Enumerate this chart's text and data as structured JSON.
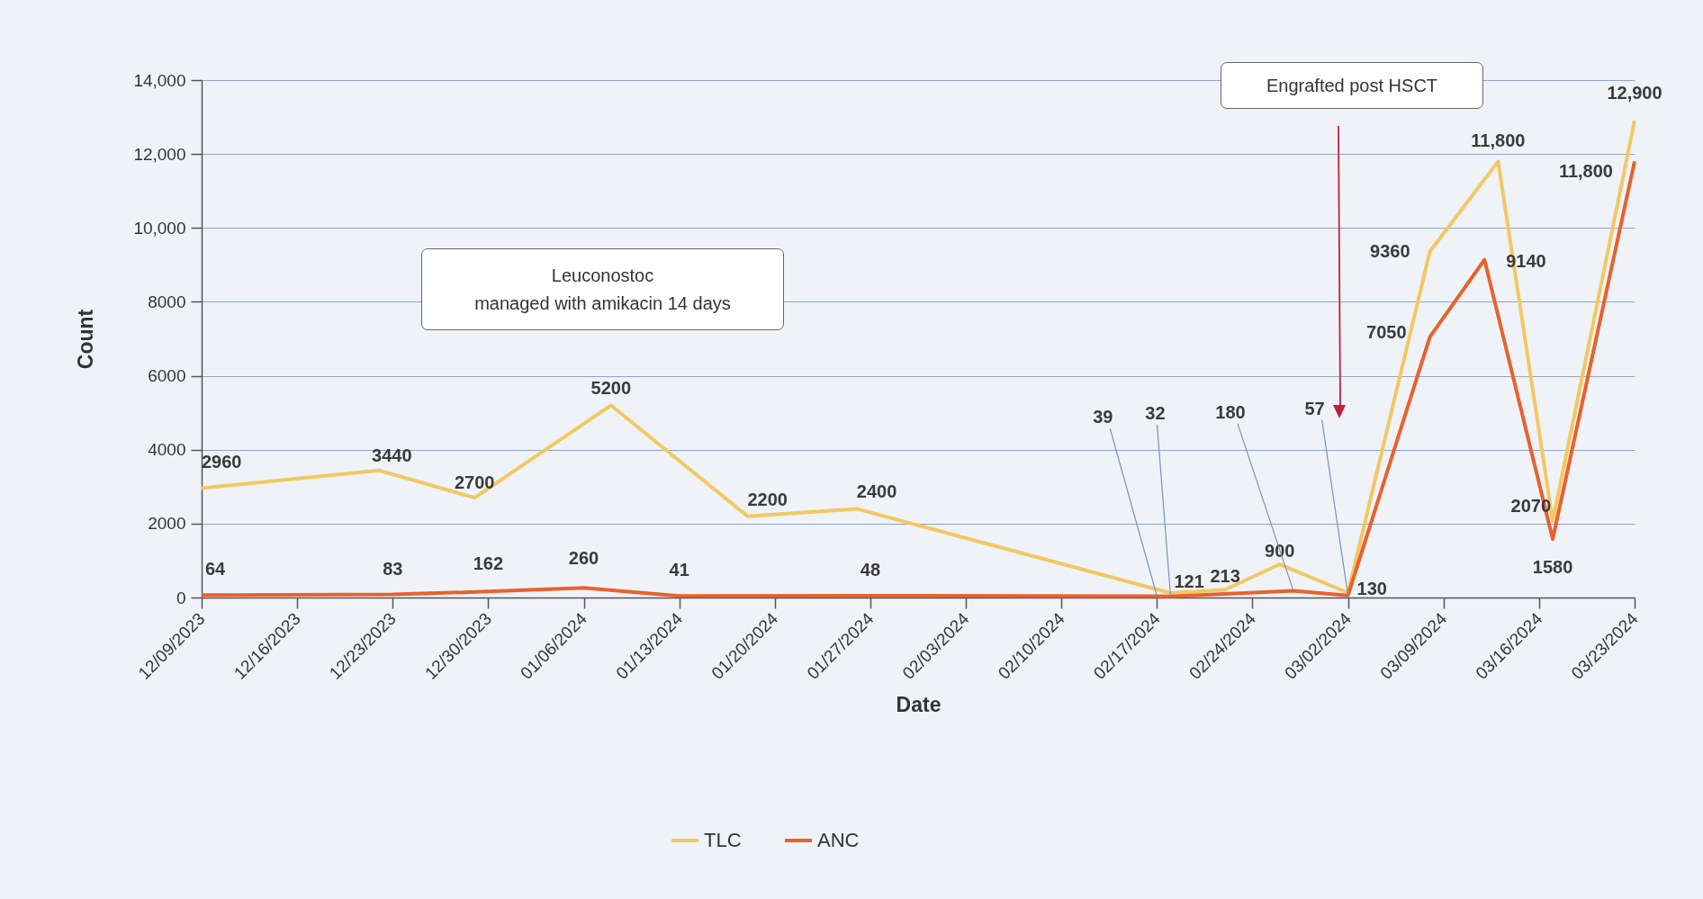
{
  "chart_data": {
    "type": "line",
    "xlabel": "Date",
    "ylabel": "Count",
    "xlim": [
      "2023-12-09",
      "2024-03-23"
    ],
    "xticks": [
      {
        "value": "2023-12-09",
        "label": "12/09/2023"
      },
      {
        "value": "2023-12-16",
        "label": "12/16/2023"
      },
      {
        "value": "2023-12-23",
        "label": "12/23/2023"
      },
      {
        "value": "2023-12-30",
        "label": "12/30/2023"
      },
      {
        "value": "2024-01-06",
        "label": "01/06/2024"
      },
      {
        "value": "2024-01-13",
        "label": "01/13/2024"
      },
      {
        "value": "2024-01-20",
        "label": "01/20/2024"
      },
      {
        "value": "2024-01-27",
        "label": "01/27/2024"
      },
      {
        "value": "2024-02-03",
        "label": "02/03/2024"
      },
      {
        "value": "2024-02-10",
        "label": "02/10/2024"
      },
      {
        "value": "2024-02-17",
        "label": "02/17/2024"
      },
      {
        "value": "2024-02-24",
        "label": "02/24/2024"
      },
      {
        "value": "2024-03-02",
        "label": "03/02/2024"
      },
      {
        "value": "2024-03-09",
        "label": "03/09/2024"
      },
      {
        "value": "2024-03-16",
        "label": "03/16/2024"
      },
      {
        "value": "2024-03-23",
        "label": "03/23/2024"
      }
    ],
    "ylim": [
      0,
      14000
    ],
    "yticks": [
      0,
      2000,
      4000,
      6000,
      8000,
      {
        "value": 10000,
        "label": "10,000"
      },
      {
        "value": 12000,
        "label": "12,000"
      },
      {
        "value": 14000,
        "label": "14,000"
      }
    ],
    "grid": "y",
    "legend": "bottom",
    "series": [
      {
        "name": "TLC",
        "color": "#f2c862",
        "x": [
          "2023-12-09",
          "2023-12-22",
          "2023-12-29",
          "2024-01-08",
          "2024-01-18",
          "2024-01-26",
          "2024-02-18",
          "2024-02-22",
          "2024-02-26",
          "2024-03-02",
          "2024-03-08",
          "2024-03-13",
          "2024-03-17",
          "2024-03-23"
        ],
        "values": [
          2960,
          3440,
          2700,
          5200,
          2200,
          2400,
          121,
          213,
          900,
          130,
          9360,
          11800,
          2070,
          12900
        ],
        "value_labels": [
          "2960",
          "3440",
          "2700",
          "5200",
          "2200",
          "2400",
          "121",
          "213",
          "900",
          "130",
          "9360",
          "11,800",
          "2070",
          "12,900"
        ]
      },
      {
        "name": "ANC",
        "color": "#e8612c",
        "x": [
          "2023-12-09",
          "2023-12-23",
          "2023-12-30",
          "2024-01-06",
          "2024-01-13",
          "2024-01-27",
          "2024-02-17",
          "2024-02-18",
          "2024-02-27",
          "2024-03-02",
          "2024-03-08",
          "2024-03-12",
          "2024-03-17",
          "2024-03-23"
        ],
        "values": [
          64,
          83,
          162,
          260,
          41,
          48,
          39,
          32,
          180,
          57,
          7050,
          9140,
          1580,
          11800
        ],
        "value_labels": [
          "64",
          "83",
          "162",
          "260",
          "41",
          "48",
          "39",
          "32",
          "180",
          "57",
          "7050",
          "9140",
          "1580",
          "11,800"
        ]
      }
    ],
    "annotations": [
      "Leuconostoc\nmanaged with amikacin 14 days",
      "Engrafted post HSCT"
    ]
  }
}
